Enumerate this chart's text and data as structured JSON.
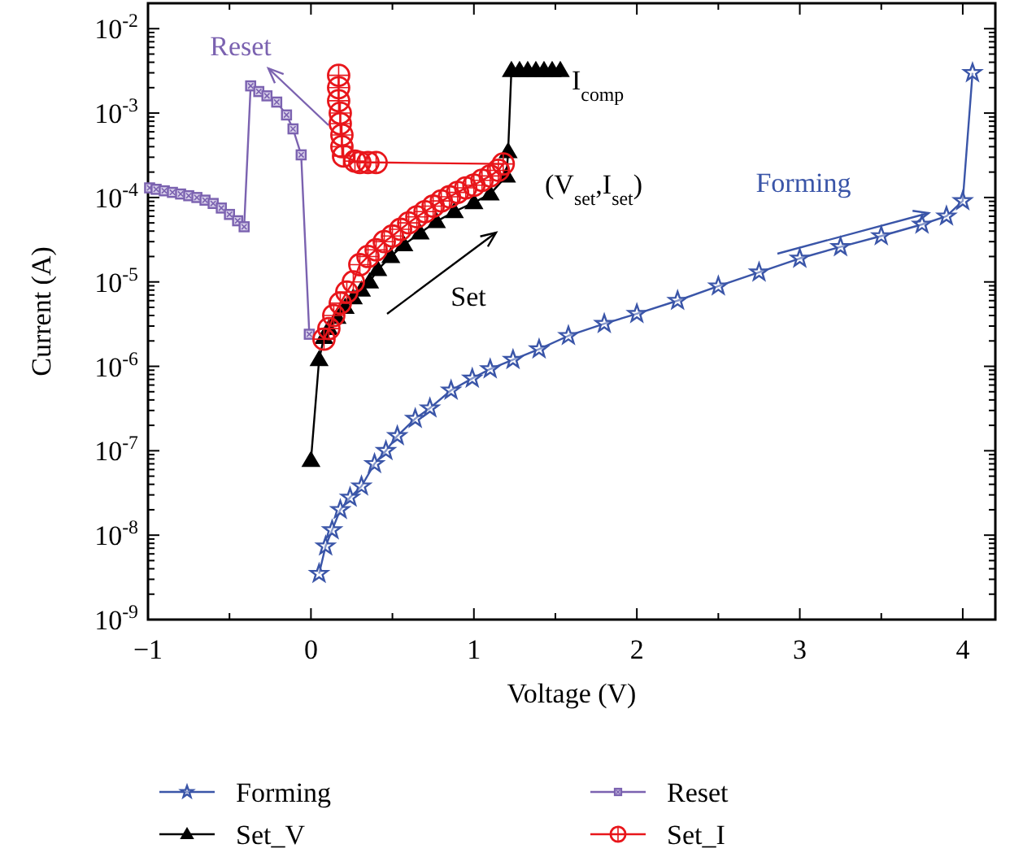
{
  "chart_data": {
    "type": "line",
    "xlabel": "Voltage (V)",
    "ylabel": "Current (A)",
    "log": "y",
    "xlim": [
      -1,
      4.2
    ],
    "ylim": [
      1e-09,
      0.02
    ],
    "xticks": [
      -1,
      {
        "value": -0.5,
        "label": null
      },
      0,
      {
        "value": 0.5,
        "label": null
      },
      1,
      {
        "value": 1.5,
        "label": null
      },
      2,
      {
        "value": 2.5,
        "label": null
      },
      3,
      {
        "value": 3.5,
        "label": null
      },
      4
    ],
    "yticks": [
      {
        "value": 1e-09,
        "label": "10$^{-9}$"
      },
      {
        "value": 1e-08,
        "label": "10$^{-8}$"
      },
      {
        "value": 1e-07,
        "label": "10$^{-7}$"
      },
      {
        "value": 1e-06,
        "label": "10$^{-6}$"
      },
      {
        "value": 1e-05,
        "label": "10$^{-5}$"
      },
      {
        "value": 0.0001,
        "label": "10$^{-4}$"
      },
      {
        "value": 0.001,
        "label": "10$^{-3}$"
      },
      {
        "value": 0.01,
        "label": "10$^{-2}$"
      }
    ],
    "grid": false,
    "legend": "bottom",
    "series": [
      {
        "name": "Forming",
        "color": "#3a55a8",
        "marker": "star",
        "x": [
          0.05,
          0.09,
          0.13,
          0.18,
          0.24,
          0.31,
          0.39,
          0.46,
          0.53,
          0.64,
          0.73,
          0.86,
          0.99,
          1.1,
          1.24,
          1.4,
          1.58,
          1.8,
          2.0,
          2.25,
          2.5,
          2.75,
          3.0,
          3.25,
          3.5,
          3.75,
          3.9,
          4.0,
          4.06
        ],
        "values": [
          3.5e-09,
          7.4e-09,
          1.15e-08,
          2e-08,
          2.8e-08,
          3.8e-08,
          7e-08,
          1e-07,
          1.5e-07,
          2.4e-07,
          3.2e-07,
          5.2e-07,
          7.2e-07,
          9.3e-07,
          1.2e-06,
          1.6e-06,
          2.3e-06,
          3.2e-06,
          4.2e-06,
          6e-06,
          8.9e-06,
          1.3e-05,
          1.9e-05,
          2.6e-05,
          3.5e-05,
          4.8e-05,
          6e-05,
          9.1e-05,
          0.003
        ]
      },
      {
        "name": "Reset",
        "color": "#7b62b0",
        "marker": "square",
        "x": [
          -0.99,
          -0.95,
          -0.9,
          -0.85,
          -0.8,
          -0.75,
          -0.7,
          -0.65,
          -0.6,
          -0.55,
          -0.5,
          -0.45,
          -0.41,
          -0.37,
          -0.32,
          -0.27,
          -0.21,
          -0.15,
          -0.11,
          -0.06,
          -0.01
        ],
        "values": [
          0.00013,
          0.000125,
          0.00012,
          0.000115,
          0.00011,
          0.000105,
          0.0001,
          9.3e-05,
          8.5e-05,
          7.5e-05,
          6.3e-05,
          5.3e-05,
          4.5e-05,
          0.0021,
          0.0018,
          0.0016,
          0.00135,
          0.00095,
          0.00065,
          0.00032,
          2.4e-06
        ]
      },
      {
        "name": "Set_V",
        "color": "#000000",
        "marker": "triangle",
        "x": [
          0.0,
          0.05,
          0.08,
          0.11,
          0.16,
          0.21,
          0.26,
          0.31,
          0.36,
          0.41,
          0.49,
          0.57,
          0.67,
          0.77,
          0.88,
          1.0,
          1.1,
          1.2,
          1.21,
          1.23,
          1.28,
          1.33,
          1.38,
          1.43,
          1.48,
          1.53
        ],
        "values": [
          7.7e-08,
          1.2e-06,
          2.2e-06,
          2.8e-06,
          3.8e-06,
          5e-06,
          6.5e-06,
          8e-06,
          1e-05,
          1.4e-05,
          2e-05,
          2.75e-05,
          3.8e-05,
          5.2e-05,
          6.8e-05,
          8.7e-05,
          0.00011,
          0.00018,
          0.00035,
          0.0032,
          0.0032,
          0.0032,
          0.0032,
          0.0032,
          0.0032,
          0.0032
        ]
      },
      {
        "name": "Set_I",
        "color": "#e8161b",
        "marker": "circle",
        "x": [
          0.08,
          0.11,
          0.14,
          0.18,
          0.22,
          0.26,
          0.3,
          0.35,
          0.4,
          0.45,
          0.5,
          0.55,
          0.6,
          0.65,
          0.7,
          0.75,
          0.8,
          0.85,
          0.9,
          0.95,
          1.0,
          1.05,
          1.1,
          1.15,
          1.18,
          0.4,
          0.35,
          0.3,
          0.27,
          0.2,
          0.19,
          0.19,
          0.18,
          0.18,
          0.17,
          0.17,
          0.17
        ],
        "values": [
          2.1e-06,
          2.8e-06,
          4e-06,
          5.6e-06,
          7.6e-06,
          1e-05,
          1.6e-05,
          2e-05,
          2.4e-05,
          3e-05,
          3.5e-05,
          4.2e-05,
          5e-05,
          5.9e-05,
          6.8e-05,
          7.9e-05,
          9.1e-05,
          0.000102,
          0.000115,
          0.00013,
          0.00014,
          0.00016,
          0.00018,
          0.00021,
          0.00025,
          0.00026,
          0.00026,
          0.00026,
          0.00027,
          0.00031,
          0.0004,
          0.00055,
          0.00075,
          0.001,
          0.0014,
          0.002,
          0.0028
        ]
      }
    ],
    "annotations": [
      "Reset",
      "Forming",
      "Set",
      {
        "text": "I$_{comp}$",
        "x": 1.6,
        "y": 0.0025
      },
      "(V$_{set}$,I$_{set}$)"
    ]
  }
}
